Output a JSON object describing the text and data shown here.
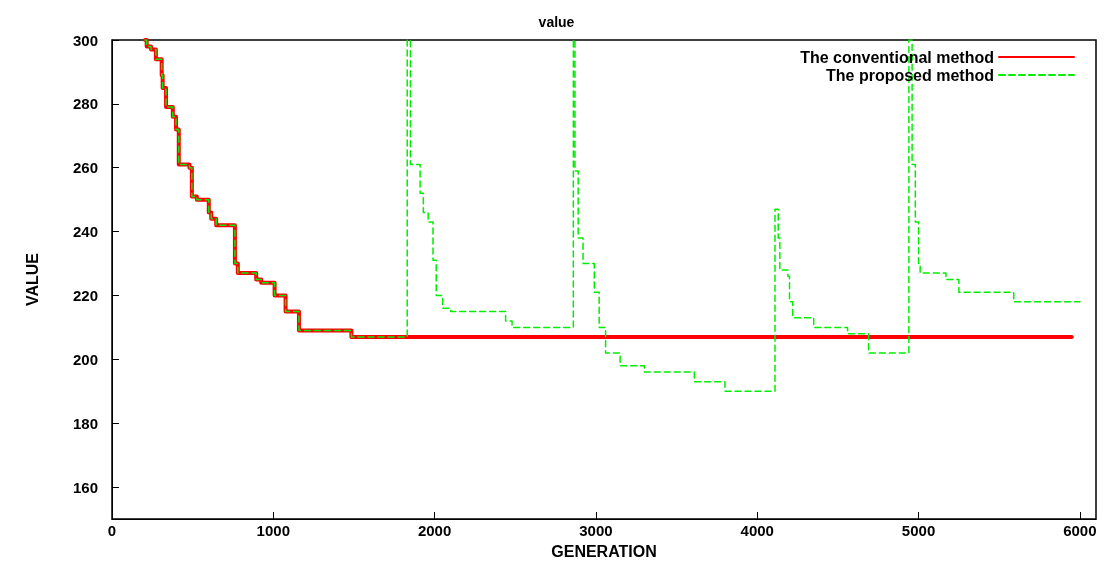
{
  "chart_data": {
    "type": "step",
    "title": "value",
    "xlabel": "GENERATION",
    "ylabel": "VALUE",
    "xlim": [
      0,
      6100
    ],
    "xticks": [
      0,
      1000,
      2000,
      3000,
      4000,
      5000,
      6000
    ],
    "ylim": [
      150,
      300
    ],
    "yticks": [
      160,
      180,
      200,
      220,
      240,
      260,
      280,
      300
    ],
    "grid": false,
    "legend": "top right",
    "series": [
      {
        "name": "The conventional method",
        "color": "#ff0000",
        "line_style": "solid",
        "x": [
          205,
          215,
          242,
          272,
          308,
          314,
          335,
          377,
          397,
          414,
          480,
          495,
          526,
          600,
          615,
          646,
          762,
          780,
          894,
          925,
          1008,
          1076,
          1159,
          1484,
          5950
        ],
        "values": [
          300,
          298,
          297,
          294,
          289,
          285,
          279,
          276,
          272,
          261,
          260,
          251,
          250,
          246,
          244,
          242,
          230,
          227,
          225,
          224,
          220,
          215,
          209,
          207,
          207
        ]
      },
      {
        "name": "The proposed method",
        "color": "#00ee00",
        "line_style": "dashed",
        "x": [
          205,
          215,
          242,
          272,
          308,
          314,
          335,
          377,
          397,
          414,
          480,
          495,
          526,
          600,
          615,
          646,
          762,
          780,
          894,
          925,
          1008,
          1076,
          1159,
          1484,
          1830,
          1850,
          1910,
          1930,
          1960,
          1990,
          2010,
          2050,
          2100,
          2440,
          2480,
          2860,
          2870,
          2890,
          2920,
          2990,
          3020,
          3060,
          3150,
          3300,
          3610,
          3800,
          4110,
          4130,
          4140,
          4190,
          4200,
          4220,
          4350,
          4560,
          4690,
          4940,
          4960,
          4980,
          5000,
          5010,
          5170,
          5250,
          5590,
          6000
        ],
        "values": [
          300,
          298,
          297,
          294,
          289,
          285,
          279,
          276,
          272,
          261,
          260,
          251,
          250,
          246,
          244,
          242,
          230,
          227,
          225,
          224,
          220,
          215,
          209,
          207,
          300,
          261,
          252,
          246,
          243,
          231,
          220,
          216,
          215,
          212,
          210,
          300,
          259,
          238,
          230,
          221,
          210,
          202,
          198,
          196,
          193,
          190,
          247,
          238,
          228,
          226,
          218,
          213,
          210,
          208,
          202,
          300,
          261,
          243,
          230,
          227,
          225,
          221,
          218,
          218
        ]
      }
    ]
  }
}
